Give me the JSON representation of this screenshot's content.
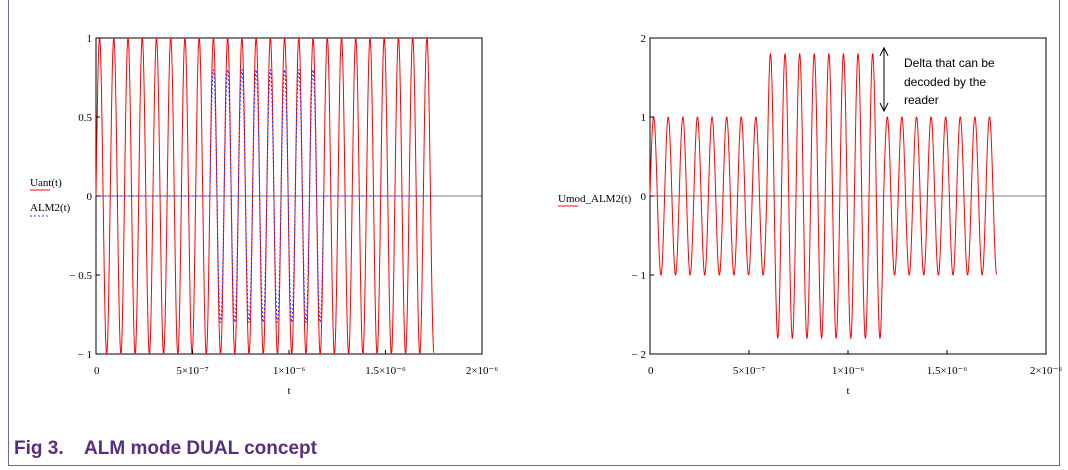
{
  "caption": "Fig 3.    ALM mode DUAL concept",
  "chart_data": [
    {
      "type": "line",
      "xlabel": "t",
      "xlim": [
        0,
        2e-06
      ],
      "ylim": [
        -1,
        1
      ],
      "x_ticks": [
        {
          "value": 0,
          "label": "0"
        },
        {
          "value": 5e-07,
          "label": "5×10⁻⁷"
        },
        {
          "value": 1e-06,
          "label": "1×10⁻⁶"
        },
        {
          "value": 1.5e-06,
          "label": "1.5×10⁻⁶"
        },
        {
          "value": 2e-06,
          "label": "2×10⁻⁶"
        }
      ],
      "y_ticks": [
        {
          "value": 1,
          "label": "1"
        },
        {
          "value": 0.5,
          "label": "0.5"
        },
        {
          "value": 0,
          "label": "0"
        },
        {
          "value": -0.5,
          "label": "− 0.5"
        },
        {
          "value": -1,
          "label": "− 1"
        }
      ],
      "legend_position": "left",
      "series": [
        {
          "name": "Uant(t)",
          "color": "#ff0000",
          "style": "solid",
          "carrier_frequency_hz": 13560000,
          "t_range": [
            0,
            1.75e-06
          ],
          "segments": [
            {
              "from": 0,
              "to": 1.75e-06,
              "amplitude": 1
            }
          ]
        },
        {
          "name": "ALM2(t)",
          "color": "#3333ff",
          "style": "dotted",
          "carrier_frequency_hz": 13560000,
          "t_range": [
            0,
            1.75e-06
          ],
          "segments": [
            {
              "from": 0,
              "to": 5.9e-07,
              "amplitude": 0
            },
            {
              "from": 5.9e-07,
              "to": 1.18e-06,
              "amplitude": 0.8
            },
            {
              "from": 1.18e-06,
              "to": 1.75e-06,
              "amplitude": 0
            }
          ]
        }
      ]
    },
    {
      "type": "line",
      "xlabel": "t",
      "xlim": [
        0,
        2e-06
      ],
      "ylim": [
        -2,
        2
      ],
      "x_ticks": [
        {
          "value": 0,
          "label": "0"
        },
        {
          "value": 5e-07,
          "label": "5×10⁻⁷"
        },
        {
          "value": 1e-06,
          "label": "1×10⁻⁶"
        },
        {
          "value": 1.5e-06,
          "label": "1.5×10⁻⁶"
        },
        {
          "value": 2e-06,
          "label": "2×10⁻⁶"
        }
      ],
      "y_ticks": [
        {
          "value": 2,
          "label": "2"
        },
        {
          "value": 1,
          "label": "1"
        },
        {
          "value": 0,
          "label": "0"
        },
        {
          "value": -1,
          "label": "− 1"
        },
        {
          "value": -2,
          "label": "− 2"
        }
      ],
      "legend_position": "left",
      "series": [
        {
          "name": "Umod_ALM2(t)",
          "color": "#ff0000",
          "style": "solid",
          "carrier_frequency_hz": 13560000,
          "t_range": [
            0,
            1.75e-06
          ],
          "segments": [
            {
              "from": 0,
              "to": 5.9e-07,
              "amplitude": 1
            },
            {
              "from": 5.9e-07,
              "to": 1.18e-06,
              "amplitude": 1.8
            },
            {
              "from": 1.18e-06,
              "to": 1.75e-06,
              "amplitude": 1
            }
          ]
        }
      ],
      "annotation": {
        "text_lines": [
          "Delta that can be",
          "decoded by the",
          "reader"
        ],
        "arrow_from": 1,
        "arrow_to": 1.8
      }
    }
  ]
}
